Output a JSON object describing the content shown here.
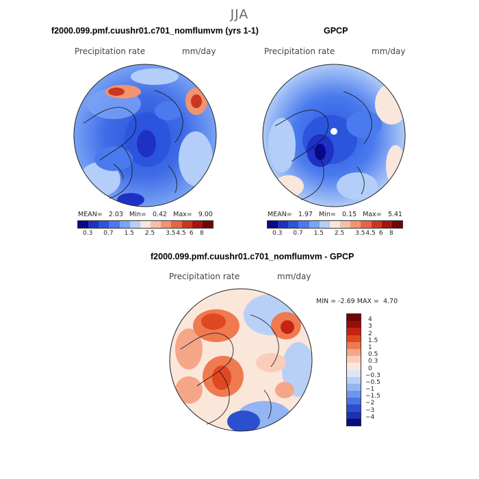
{
  "season": "JJA",
  "colors": {
    "prec": [
      "#08088c",
      "#1f31c4",
      "#2c55dd",
      "#4a7aee",
      "#7aa4f5",
      "#b3cef8",
      "#f9e6dc",
      "#f6c0a6",
      "#f19470",
      "#e4683f",
      "#cb3620",
      "#a8140c",
      "#6e0606"
    ],
    "diff": [
      "#6e0606",
      "#9a0c08",
      "#c62312",
      "#e04822",
      "#ef7a50",
      "#f5a689",
      "#f9cdb9",
      "#fbe6da",
      "#dbe7f8",
      "#b9d0f6",
      "#94b4f2",
      "#6e95ec",
      "#4a74e0",
      "#2a50cf",
      "#1c31b0",
      "#0b0b80"
    ]
  },
  "panels": {
    "model": {
      "title": "f2000.099.pmf.cuushr01.c701_nomflumvm (yrs 1-1)",
      "variable": "Precipitation rate",
      "units": "mm/day",
      "mean_label": "MEAN=",
      "mean": "2.03",
      "min_label": "Min=",
      "min": "0.42",
      "max_label": "Max=",
      "max": "9.00"
    },
    "obs": {
      "title": "GPCP",
      "variable": "Precipitation rate",
      "units": "mm/day",
      "mean_label": "MEAN=",
      "mean": "1.97",
      "min_label": "Min=",
      "min": "0.15",
      "max_label": "Max=",
      "max": "5.41"
    },
    "diff": {
      "title": "f2000.099.pmf.cuushr01.c701_nomflumvm - GPCP",
      "variable": "Precipitation rate",
      "units": "mm/day",
      "min_label": "MIN =",
      "min": "-2.69",
      "max_label": "MAX =",
      "max": "4.70"
    }
  },
  "colorbar_ticks": [
    "0.3",
    "0.7",
    "1.5",
    "2.5",
    "3.5",
    "4.5",
    "6",
    "8"
  ],
  "diff_ticks": [
    "4",
    "3",
    "2",
    "1.5",
    "1",
    "0.5",
    "0.3",
    "0",
    "−0.3",
    "−0.5",
    "−1",
    "−1.5",
    "−2",
    "−3",
    "−4"
  ]
}
